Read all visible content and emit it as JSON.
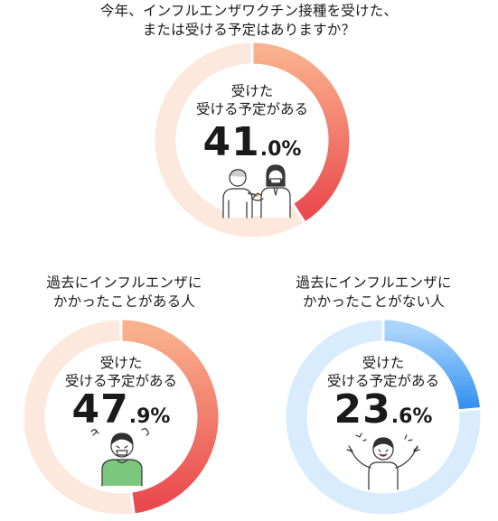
{
  "main_title": [
    "今年、インフルエンザワクチン接種を受けた、",
    "または受ける予定はありますか？"
  ],
  "center_label": [
    "受けた",
    "受ける予定がある"
  ],
  "colors": {
    "track_orange": "#fce8dc",
    "track_blue": "#d9ecfd",
    "orange_start": "#f9b08c",
    "orange_end": "#ea4a4e",
    "blue_start": "#a9d3fb",
    "blue_end": "#2e8ff0"
  },
  "chart_data": [
    {
      "type": "pie",
      "style": "donut",
      "title": "今年、インフルエンザワクチン接種を受けた、または受ける予定はありますか？",
      "slices": [
        {
          "label": "受けた 受ける予定がある",
          "value": 41.0
        }
      ],
      "value_int": "41",
      "value_dec": ".0%",
      "color_scheme": "orange",
      "icon": "nurse-vaccinating-elderly-icon"
    },
    {
      "type": "pie",
      "style": "donut",
      "title": "過去にインフルエンザにかかったことがある人",
      "title_lines": [
        "過去にインフルエンザに",
        "かかったことがある人"
      ],
      "slices": [
        {
          "label": "受けた 受ける予定がある",
          "value": 47.9
        }
      ],
      "value_int": "47",
      "value_dec": ".9%",
      "color_scheme": "orange",
      "icon": "sick-person-icon"
    },
    {
      "type": "pie",
      "style": "donut",
      "title": "過去にインフルエンザにかかったことがない人",
      "title_lines": [
        "過去にインフルエンザに",
        "かかったことがない人"
      ],
      "slices": [
        {
          "label": "受けた 受ける予定がある",
          "value": 23.6
        }
      ],
      "value_int": "23",
      "value_dec": ".6%",
      "color_scheme": "blue",
      "icon": "cheerful-person-icon"
    }
  ]
}
